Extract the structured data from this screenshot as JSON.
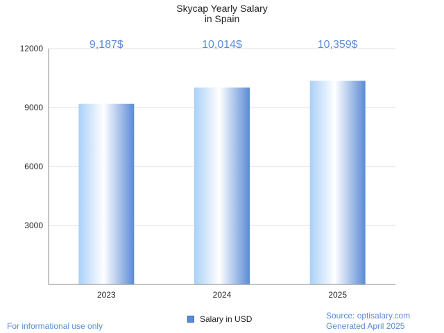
{
  "chart_data": {
    "type": "bar",
    "title": "Skycap Yearly Salary",
    "subtitle": "in Spain",
    "categories": [
      "2023",
      "2024",
      "2025"
    ],
    "series": [
      {
        "name": "Salary in USD",
        "values": [
          9187,
          10014,
          10359
        ]
      }
    ],
    "data_labels": [
      "9,187$",
      "10,014$",
      "10,359$"
    ],
    "y_ticks": [
      "3000",
      "6000",
      "9000",
      "12000"
    ],
    "ylim": [
      0,
      12000
    ],
    "grid": true,
    "legend": "bottom-center",
    "colors": {
      "bar_light": "#ffffff",
      "bar_mid": "#aad0f8",
      "bar_dark": "#5b8bd4",
      "label": "#5b8bd4",
      "grid": "#e0e0e0",
      "axis": "#888888"
    }
  },
  "footer": {
    "note": "For informational use only",
    "source": "Source: optisalary.com",
    "generated": "Generated April 2025"
  }
}
